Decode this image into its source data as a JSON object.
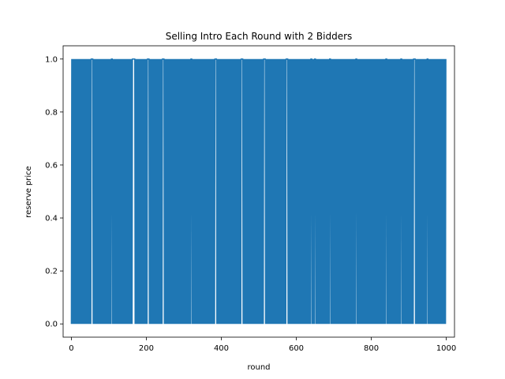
{
  "chart_data": {
    "type": "line",
    "title": "Selling Intro Each Round with 2 Bidders",
    "xlabel": "round",
    "ylabel": "reserve price",
    "xlim": [
      -22,
      1022
    ],
    "ylim": [
      -0.05,
      1.05
    ],
    "xticks": [
      0,
      200,
      400,
      600,
      800,
      1000
    ],
    "yticks": [
      0.0,
      0.2,
      0.4,
      0.6,
      0.8,
      1.0
    ],
    "xtick_labels": [
      "0",
      "200",
      "400",
      "600",
      "800",
      "1000"
    ],
    "ytick_labels": [
      "0.0",
      "0.2",
      "0.4",
      "0.6",
      "0.8",
      "1.0"
    ],
    "grid": false,
    "series": [
      {
        "color": "#1f77b4",
        "x_range": [
          0,
          999
        ],
        "values_set": [
          0,
          1
        ],
        "note": "reserve price alternates between 0 and 1 almost every round",
        "gaps_at_zero": [
          55,
          108,
          165,
          168,
          205,
          245,
          320,
          385,
          455,
          515,
          575,
          640,
          650,
          690,
          760,
          840,
          880,
          915,
          950
        ]
      }
    ]
  }
}
